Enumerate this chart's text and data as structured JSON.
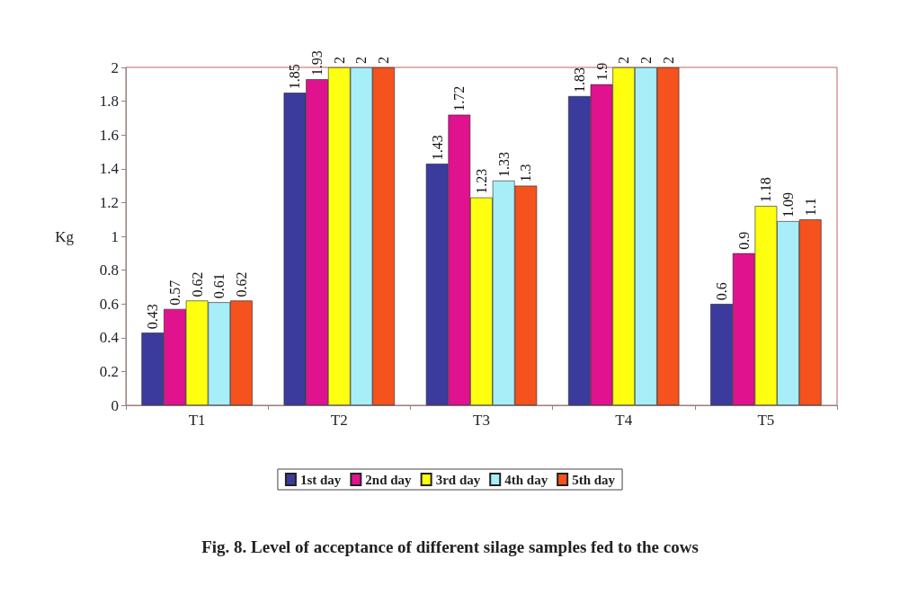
{
  "chart_data": {
    "type": "bar",
    "title": "Fig. 8. Level of acceptance of different silage samples fed to the cows",
    "ylabel": "Kg",
    "categories": [
      "T1",
      "T2",
      "T3",
      "T4",
      "T5"
    ],
    "series": [
      {
        "name": "1st day",
        "color": "#3b3b9e",
        "values": [
          0.43,
          1.85,
          1.43,
          1.83,
          0.6
        ]
      },
      {
        "name": "2nd day",
        "color": "#e0128e",
        "values": [
          0.57,
          1.93,
          1.72,
          1.9,
          0.9
        ]
      },
      {
        "name": "3rd day",
        "color": "#ffff10",
        "values": [
          0.62,
          2,
          1.23,
          2,
          1.18
        ]
      },
      {
        "name": "4th day",
        "color": "#a8eef8",
        "values": [
          0.61,
          2,
          1.33,
          2,
          1.09
        ]
      },
      {
        "name": "5th day",
        "color": "#f5521e",
        "values": [
          0.62,
          2,
          1.3,
          2,
          1.1
        ]
      }
    ],
    "ylim": [
      0,
      2
    ],
    "yticks": [
      0,
      0.2,
      0.4,
      0.6,
      0.8,
      1,
      1.2,
      1.4,
      1.6,
      1.8,
      2
    ],
    "grid": false,
    "legend": "bottom",
    "data_labels": true
  }
}
